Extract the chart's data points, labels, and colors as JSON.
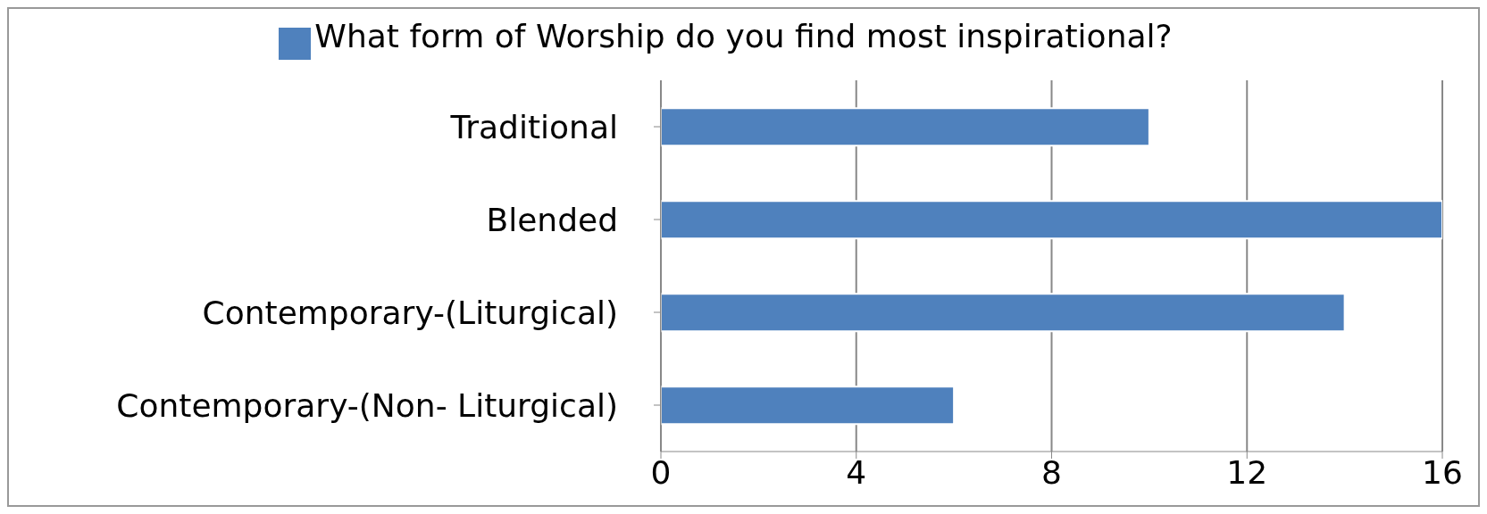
{
  "chart_data": {
    "type": "bar",
    "orientation": "horizontal",
    "categories": [
      "Traditional",
      "Blended",
      "Contemporary-(Liturgical)",
      "Contemporary-(Non- Liturgical)"
    ],
    "series": [
      {
        "name": "What form of Worship do you find most inspirational?",
        "color": "#4f81bd",
        "values": [
          10,
          16,
          14,
          6
        ]
      }
    ],
    "xlim": [
      0,
      16
    ],
    "xticks": [
      0,
      4,
      8,
      12,
      16
    ],
    "grid": "x",
    "legend": "top"
  }
}
